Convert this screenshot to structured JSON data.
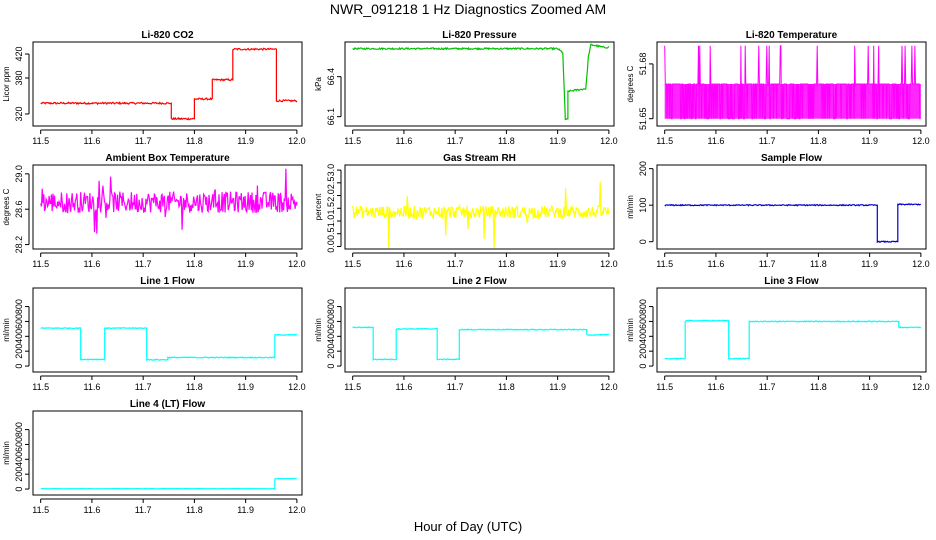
{
  "figure": {
    "title": "NWR_091218  1 Hz Diagnostics Zoomed AM",
    "xlabel": "Hour of Day (UTC)"
  },
  "chart_data": [
    {
      "type": "line",
      "title": "Li-820 CO2",
      "ylabel": "Licor ppm",
      "color": "#ff0000",
      "xlim": [
        11.485,
        12.01
      ],
      "ylim": [
        300,
        440
      ],
      "xticks": [
        11.5,
        11.6,
        11.7,
        11.8,
        11.9,
        12.0
      ],
      "yticks": [
        320,
        380,
        420
      ],
      "x": [
        11.5,
        11.755,
        11.755,
        11.8,
        11.8,
        11.835,
        11.835,
        11.875,
        11.875,
        11.96,
        11.96,
        12.0
      ],
      "y": [
        338,
        338,
        312,
        312,
        345,
        345,
        377,
        377,
        428,
        428,
        342,
        342
      ],
      "noise": 1.5
    },
    {
      "type": "line",
      "title": "Li-820 Pressure",
      "ylabel": "kPa",
      "color": "#00c000",
      "xlim": [
        11.485,
        12.01
      ],
      "ylim": [
        66.03,
        66.66
      ],
      "xticks": [
        11.5,
        11.6,
        11.7,
        11.8,
        11.9,
        12.0
      ],
      "yticks": [
        66.1,
        66.4
      ],
      "x": [
        11.5,
        11.9,
        11.91,
        11.915,
        11.92,
        11.92,
        11.955,
        11.96,
        11.965,
        11.99,
        12.0
      ],
      "y": [
        66.61,
        66.61,
        66.58,
        66.08,
        66.08,
        66.29,
        66.31,
        66.55,
        66.64,
        66.62,
        66.62
      ],
      "noise": 0.006
    },
    {
      "type": "line",
      "title": "Li-820 Temperature",
      "ylabel": "degrees C",
      "color": "#ff00ff",
      "xlim": [
        11.485,
        12.01
      ],
      "ylim": [
        51.646,
        51.692
      ],
      "xticks": [
        11.5,
        11.6,
        11.7,
        11.8,
        11.9,
        12.0
      ],
      "yticks": [
        51.65,
        51.68
      ],
      "x": [
        11.5,
        12.0
      ],
      "y": [
        51.669,
        51.669
      ],
      "switching": {
        "low": 51.65,
        "mid": 51.669,
        "high": 51.69
      }
    },
    {
      "type": "line",
      "title": "Ambient Box Temperature",
      "ylabel": "degrees C",
      "color": "#ff00ff",
      "xlim": [
        11.485,
        12.01
      ],
      "ylim": [
        28.15,
        29.1
      ],
      "xticks": [
        11.5,
        11.6,
        11.7,
        11.8,
        11.9,
        12.0
      ],
      "yticks": [
        28.2,
        28.6,
        29.0
      ],
      "x": [
        11.5,
        12.0
      ],
      "y": [
        28.68,
        28.68
      ],
      "noise": 0.12,
      "spikes": 0.3
    },
    {
      "type": "line",
      "title": "Gas Stream RH",
      "ylabel": "percent",
      "color": "#ffff00",
      "xlim": [
        11.485,
        12.01
      ],
      "ylim": [
        -0.1,
        3.2
      ],
      "xticks": [
        11.5,
        11.6,
        11.7,
        11.8,
        11.9,
        12.0
      ],
      "yticks": [
        0.0,
        0.5,
        1.0,
        1.5,
        2.0,
        2.5,
        3.0
      ],
      "x": [
        11.5,
        12.0
      ],
      "y": [
        1.35,
        1.35
      ],
      "noise": 0.25,
      "spikes": 1.5
    },
    {
      "type": "line",
      "title": "Sample Flow",
      "ylabel": "ml/min",
      "color": "#0000cc",
      "xlim": [
        11.485,
        12.01
      ],
      "ylim": [
        -20,
        210
      ],
      "xticks": [
        11.5,
        11.6,
        11.7,
        11.8,
        11.9,
        12.0
      ],
      "yticks": [
        0,
        100,
        200
      ],
      "x": [
        11.5,
        11.915,
        11.915,
        11.955,
        11.955,
        12.0
      ],
      "y": [
        100,
        100,
        0,
        0,
        102,
        102
      ],
      "noise": 1.5
    },
    {
      "type": "line",
      "title": "Line 1 Flow",
      "ylabel": "ml/min",
      "color": "#00ffff",
      "xlim": [
        11.485,
        12.01
      ],
      "ylim": [
        -80,
        1050
      ],
      "xticks": [
        11.5,
        11.6,
        11.7,
        11.8,
        11.9,
        12.0
      ],
      "yticks": [
        0,
        200,
        400,
        600,
        800
      ],
      "x": [
        11.5,
        11.578,
        11.578,
        11.625,
        11.625,
        11.707,
        11.707,
        11.748,
        11.748,
        11.957,
        11.957,
        12.0
      ],
      "y": [
        510,
        510,
        90,
        90,
        510,
        510,
        85,
        85,
        115,
        115,
        420,
        420
      ],
      "noise": 6
    },
    {
      "type": "line",
      "title": "Line 2 Flow",
      "ylabel": "ml/min",
      "color": "#00ffff",
      "xlim": [
        11.485,
        12.01
      ],
      "ylim": [
        -80,
        1050
      ],
      "xticks": [
        11.5,
        11.6,
        11.7,
        11.8,
        11.9,
        12.0
      ],
      "yticks": [
        0,
        200,
        400,
        600,
        800
      ],
      "x": [
        11.5,
        11.54,
        11.54,
        11.585,
        11.585,
        11.665,
        11.665,
        11.708,
        11.708,
        11.957,
        11.957,
        12.0
      ],
      "y": [
        520,
        520,
        90,
        90,
        500,
        500,
        90,
        90,
        490,
        490,
        420,
        420
      ],
      "noise": 6
    },
    {
      "type": "line",
      "title": "Line 3 Flow",
      "ylabel": "ml/min",
      "color": "#00ffff",
      "xlim": [
        11.485,
        12.01
      ],
      "ylim": [
        -80,
        1050
      ],
      "xticks": [
        11.5,
        11.6,
        11.7,
        11.8,
        11.9,
        12.0
      ],
      "yticks": [
        0,
        200,
        400,
        600,
        800
      ],
      "x": [
        11.5,
        11.54,
        11.54,
        11.625,
        11.625,
        11.665,
        11.665,
        11.957,
        11.957,
        12.0
      ],
      "y": [
        100,
        100,
        610,
        610,
        100,
        100,
        600,
        600,
        520,
        520
      ],
      "noise": 6
    },
    {
      "type": "line",
      "title": "Line 4 (LT) Flow",
      "ylabel": "ml/min",
      "color": "#00ffff",
      "xlim": [
        11.485,
        12.01
      ],
      "ylim": [
        -80,
        1050
      ],
      "xticks": [
        11.5,
        11.6,
        11.7,
        11.8,
        11.9,
        12.0
      ],
      "yticks": [
        0,
        200,
        400,
        600,
        800
      ],
      "x": [
        11.5,
        11.957,
        11.957,
        12.0
      ],
      "y": [
        5,
        5,
        140,
        140
      ],
      "noise": 2
    }
  ]
}
